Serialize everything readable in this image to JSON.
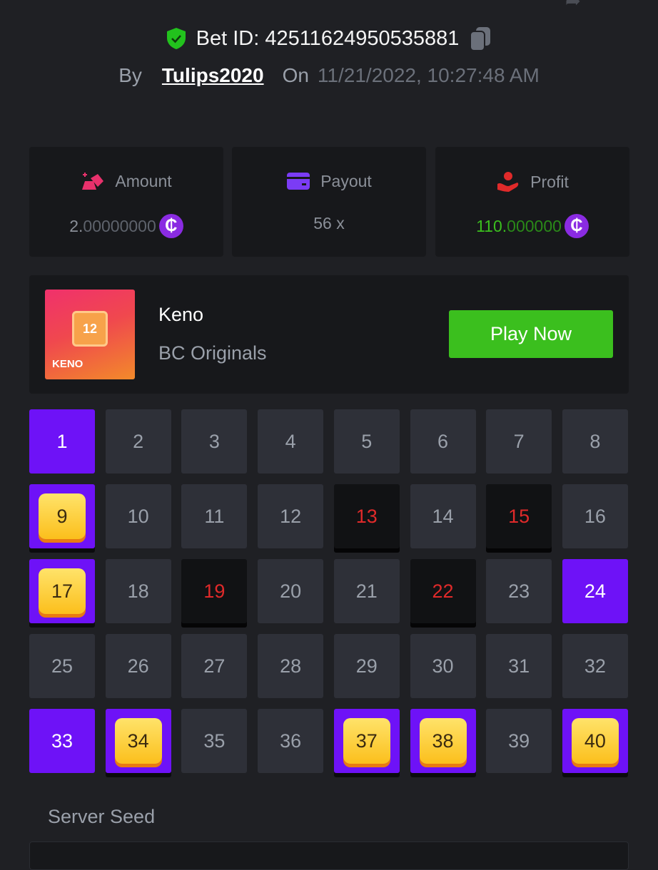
{
  "header": {
    "bet_id_label": "Bet ID: 425116249505358​81",
    "by_label": "By",
    "user": "Tulips2020",
    "on_label": "On",
    "date": "11/21/2022, 10:27:48 AM"
  },
  "stats": [
    {
      "label": "Amount",
      "value_int": "2.",
      "value_dec": "00000000",
      "currency": "₵"
    },
    {
      "label": "Payout",
      "value": "56 x"
    },
    {
      "label": "Profit",
      "value_int": "110.",
      "value_dec": "000000",
      "currency": "₵"
    }
  ],
  "game": {
    "thumb_number": "12",
    "thumb_logo": "KENO",
    "name": "Keno",
    "provider": "BC Originals",
    "play_label": "Play Now"
  },
  "board": {
    "numbers": [
      1,
      2,
      3,
      4,
      5,
      6,
      7,
      8,
      9,
      10,
      11,
      12,
      13,
      14,
      15,
      16,
      17,
      18,
      19,
      20,
      21,
      22,
      23,
      24,
      25,
      26,
      27,
      28,
      29,
      30,
      31,
      32,
      33,
      34,
      35,
      36,
      37,
      38,
      39,
      40
    ],
    "picked_only": [
      1,
      24,
      33
    ],
    "hits": [
      9,
      17,
      34,
      37,
      38,
      40
    ],
    "drawn_misses": [
      13,
      15,
      19,
      22
    ]
  },
  "server_seed_label": "Server Seed",
  "colors": {
    "accent": "#6e12f7",
    "win": "#3bbf1e",
    "miss": "#e02a2a"
  }
}
